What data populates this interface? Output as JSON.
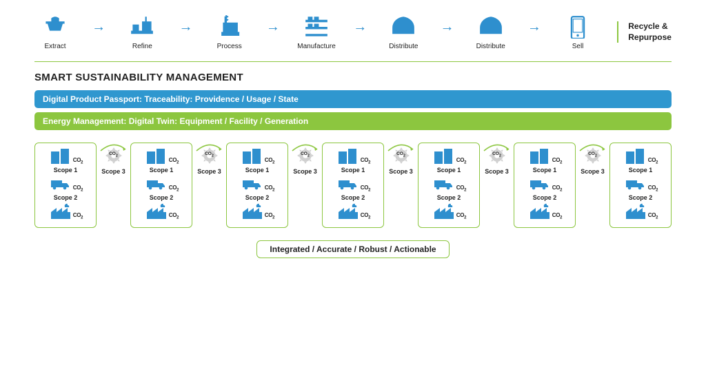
{
  "colors": {
    "accent": "#2e8fce",
    "green": "#8cc63f",
    "blue_bar": "#2f97cf",
    "text": "#222222",
    "grey": "#d0d0d0"
  },
  "top_stages": [
    {
      "icon": "extract",
      "label": "Extract"
    },
    {
      "icon": "refine",
      "label": "Refine"
    },
    {
      "icon": "process",
      "label": "Process"
    },
    {
      "icon": "manufacture",
      "label": "Manufacture"
    },
    {
      "icon": "distribute",
      "label": "Distribute"
    },
    {
      "icon": "distribute",
      "label": "Distribute"
    },
    {
      "icon": "sell",
      "label": "Sell"
    }
  ],
  "recycle_label": "Recycle &\nRepurpose",
  "section_title": "SMART SUSTAINABILITY MANAGEMENT",
  "bars": {
    "blue": "Digital Product Passport: Traceability: Providence / Usage / State",
    "green": "Energy Management: Digital Twin: Equipment / Facility / Generation"
  },
  "scope_card": {
    "items": [
      {
        "icon": "buildings",
        "co2": "CO2",
        "label": "Scope 1"
      },
      {
        "icon": "truck",
        "co2": "CO2",
        "label": "Scope 2"
      },
      {
        "icon": "factory",
        "co2": "CO2",
        "label": ""
      }
    ]
  },
  "scope_count": 7,
  "connector": {
    "gear_co2": "CO2",
    "label": "Scope 3"
  },
  "footer": "Integrated / Accurate / Robust / Actionable",
  "styles": {
    "stage_label_fontsize": 10,
    "scope_label_fontsize": 9,
    "bar_fontsize": 12,
    "title_fontsize": 15,
    "footer_fontsize": 12,
    "card_border_radius": 6
  }
}
